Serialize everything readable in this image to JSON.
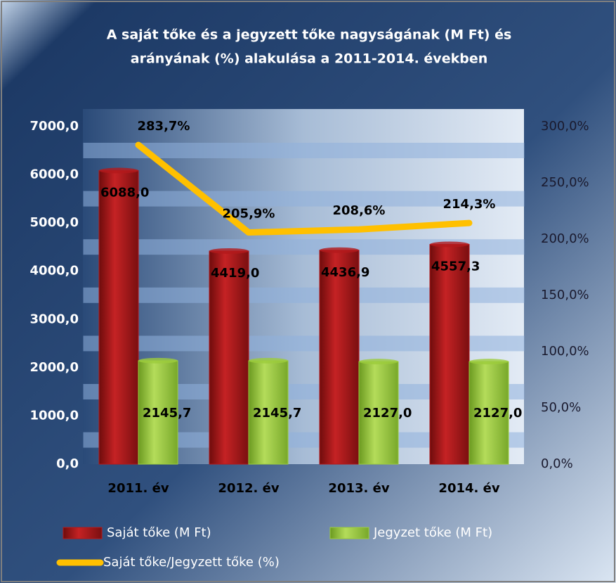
{
  "chart_data": {
    "type": "bar",
    "title": [
      "A saját tőke és a jegyzett tőke nagyságának (M Ft) és",
      "arányának (%) alakulása a 2011-2014. években"
    ],
    "categories": [
      "2011. év",
      "2012. év",
      "2013. év",
      "2014. év"
    ],
    "series": [
      {
        "name": "Saját tőke (M Ft)",
        "color": "#b3191b",
        "values": [
          6088.0,
          4419.0,
          4436.9,
          4557.3
        ],
        "value_labels": [
          "6088,0",
          "4419,0",
          "4436,9",
          "4557,3"
        ]
      },
      {
        "name": "Jegyzet tőke (M Ft)",
        "color": "#9ccc3c",
        "values": [
          2145.7,
          2145.7,
          2127.0,
          2127.0
        ],
        "value_labels": [
          "2145,7",
          "2145,7",
          "2127,0",
          "2127,0"
        ]
      },
      {
        "name": "Saját tőke/Jegyzett tőke (%)",
        "color": "#ffc000",
        "type": "line",
        "axis": "y2",
        "values": [
          283.7,
          205.9,
          208.6,
          214.3
        ],
        "value_labels": [
          "283,7%",
          "205,9%",
          "208,6%",
          "214,3%"
        ]
      }
    ],
    "ylim": [
      0,
      7000
    ],
    "yticks": [
      {
        "value": 0,
        "label": "0,0"
      },
      {
        "value": 1000,
        "label": "1000,0"
      },
      {
        "value": 2000,
        "label": "2000,0"
      },
      {
        "value": 3000,
        "label": "3000,0"
      },
      {
        "value": 4000,
        "label": "4000,0"
      },
      {
        "value": 5000,
        "label": "5000,0"
      },
      {
        "value": 6000,
        "label": "6000,0"
      },
      {
        "value": 7000,
        "label": "7000,0"
      }
    ],
    "y2lim": [
      0,
      300
    ],
    "y2ticks": [
      {
        "value": 0,
        "label": "0,0%"
      },
      {
        "value": 50,
        "label": "50,0%"
      },
      {
        "value": 100,
        "label": "100,0%"
      },
      {
        "value": 150,
        "label": "150,0%"
      },
      {
        "value": 200,
        "label": "200,0%"
      },
      {
        "value": 250,
        "label": "250,0%"
      },
      {
        "value": 300,
        "label": "300,0%"
      }
    ],
    "legend": "bottom"
  }
}
